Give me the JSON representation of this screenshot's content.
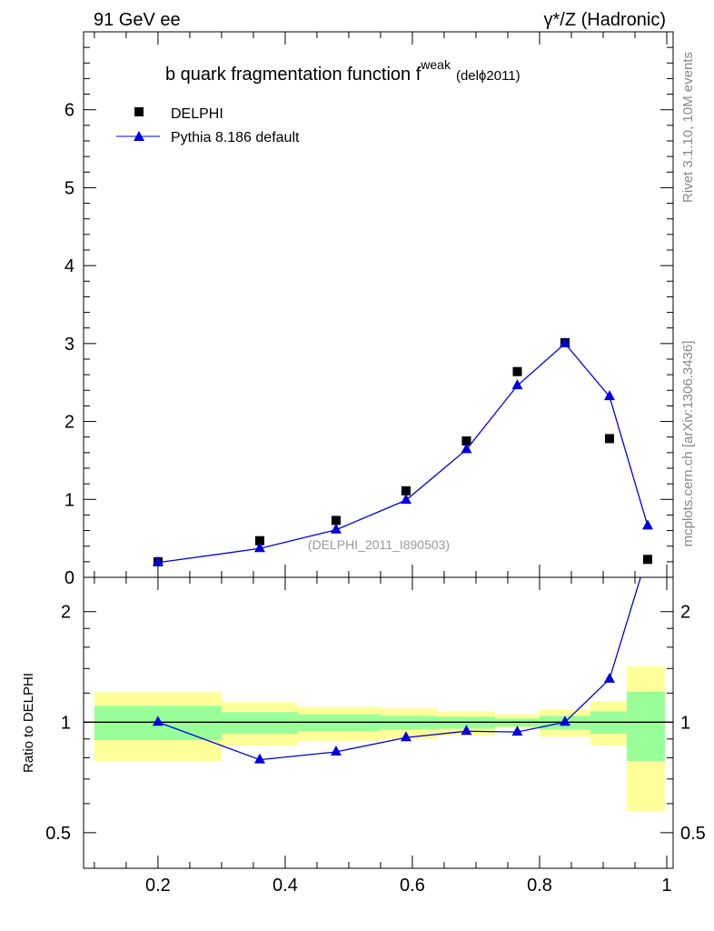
{
  "header": {
    "left": "91 GeV ee",
    "right": "γ*/Z (Hadronic)"
  },
  "side": {
    "top": "Rivet 3.1.10,  10M events",
    "bottom": "mcplots.cern.ch [arXiv:1306.3436]"
  },
  "chart_data": [
    {
      "type": "scatter",
      "title_main": "b quark fragmentation function f",
      "title_sup": "weak",
      "title_tail": "(delϕ2011)",
      "watermark": "(DELPHI_2011_I890503)",
      "xlim": [
        0.083,
        1.01
      ],
      "ylim": [
        0,
        7
      ],
      "yticks": [
        0,
        1,
        2,
        3,
        4,
        5,
        6
      ],
      "legend": {
        "placement": "top-left",
        "entries": [
          "DELPHI",
          "Pythia 8.186 default"
        ]
      },
      "series": [
        {
          "name": "DELPHI",
          "marker": "square",
          "color": "#000000",
          "x": [
            0.2,
            0.36,
            0.48,
            0.59,
            0.685,
            0.765,
            0.84,
            0.91,
            0.97
          ],
          "y": [
            0.2,
            0.47,
            0.73,
            1.11,
            1.75,
            2.64,
            3.01,
            1.78,
            0.23
          ]
        },
        {
          "name": "Pythia 8.186 default",
          "marker": "triangle",
          "color": "#0000dd",
          "x": [
            0.2,
            0.36,
            0.48,
            0.59,
            0.685,
            0.765,
            0.84,
            0.91,
            0.97
          ],
          "y": [
            0.19,
            0.37,
            0.61,
            0.99,
            1.64,
            2.46,
            3.0,
            2.32,
            0.66
          ]
        }
      ]
    },
    {
      "type": "line",
      "ylabel": "Ratio to DELPHI",
      "xlim": [
        0.083,
        1.01
      ],
      "ylim": [
        0.4,
        2.48
      ],
      "yscale": "log",
      "yticks": [
        0.5,
        1,
        2
      ],
      "xticks": [
        0.2,
        0.4,
        0.6,
        0.8,
        1
      ],
      "bands": {
        "edges": [
          0.1,
          0.3,
          0.42,
          0.55,
          0.64,
          0.73,
          0.8,
          0.88,
          0.937,
          0.997
        ],
        "yellow_hi": [
          1.206,
          1.133,
          1.1,
          1.09,
          1.07,
          1.05,
          1.083,
          1.14,
          1.42
        ],
        "yellow_lo": [
          0.784,
          0.863,
          0.89,
          0.9,
          0.92,
          0.966,
          0.913,
          0.863,
          0.573
        ],
        "green_hi": [
          1.108,
          1.065,
          1.05,
          1.04,
          1.035,
          1.023,
          1.04,
          1.07,
          1.21
        ],
        "green_lo": [
          0.893,
          0.929,
          0.945,
          0.955,
          0.96,
          0.972,
          0.955,
          0.93,
          0.784
        ]
      },
      "series": [
        {
          "name": "Pythia 8.186 default",
          "color": "#0000dd",
          "x": [
            0.2,
            0.36,
            0.48,
            0.59,
            0.685,
            0.765,
            0.84,
            0.91,
            0.97
          ],
          "y": [
            1.0,
            0.79,
            0.83,
            0.908,
            0.945,
            0.94,
            1.0,
            1.31,
            2.87
          ]
        }
      ]
    }
  ]
}
